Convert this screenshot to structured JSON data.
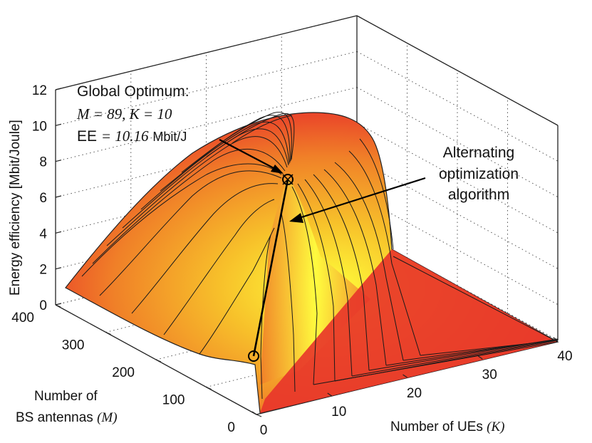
{
  "chart_data": {
    "type": "surface",
    "title": "",
    "xlabel": "Number of UEs (K)",
    "ylabel": "Number of BS antennas (M)",
    "zlabel": "Energy efficiency [Mbit/Joule]",
    "x_axis": {
      "label_prefix": "Number of UEs ",
      "label_var": "(K)",
      "range": [
        0,
        40
      ],
      "ticks": [
        "0",
        "10",
        "20",
        "30",
        "40"
      ]
    },
    "y_axis": {
      "label_line1": "Number of",
      "label_prefix": "BS antennas ",
      "label_var": "(M)",
      "range": [
        0,
        400
      ],
      "ticks": [
        "0",
        "100",
        "200",
        "300",
        "400"
      ]
    },
    "z_axis": {
      "label": "Energy efficiency [Mbit/Joule]",
      "range": [
        0,
        12
      ],
      "ticks": [
        "0",
        "2",
        "4",
        "6",
        "8",
        "10",
        "12"
      ]
    },
    "grid": true,
    "colormap": [
      "#e8302a",
      "#f6a020",
      "#ffff33"
    ],
    "global_optimum": {
      "K": 10,
      "M": 89,
      "EE": 10.16,
      "title": "Global Optimum:",
      "line2": "M = 89,  K = 10",
      "line3_prefix": "EE",
      "line3_value": "= 10.16",
      "line3_unit": "Mbit/J"
    },
    "algorithm_annotation": {
      "lines": [
        "Alternating",
        "optimization",
        "algorithm"
      ]
    },
    "algorithm_path": [
      {
        "K": 1,
        "M": 10,
        "EE": 0.5
      },
      {
        "K": 10,
        "M": 89,
        "EE": 10.16
      }
    ]
  }
}
